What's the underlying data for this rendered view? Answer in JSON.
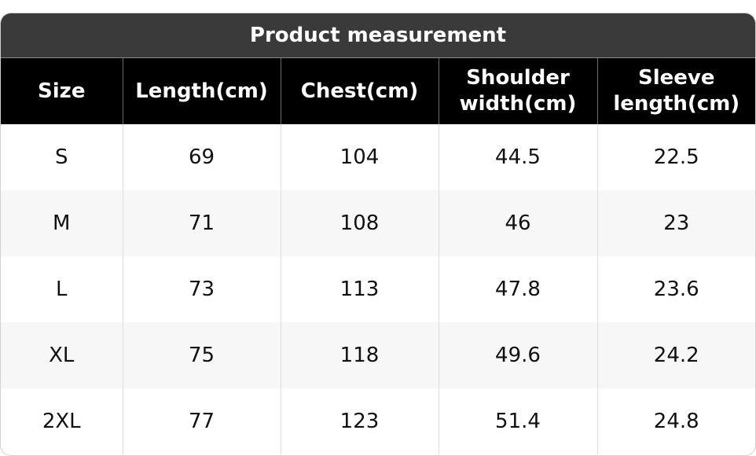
{
  "table": {
    "title": "Product measurement",
    "header": [
      "Size",
      "Length(cm)",
      "Chest(cm)",
      "Shoulder width(cm)",
      "Sleeve length(cm)"
    ],
    "rows": [
      [
        "S",
        69,
        104,
        44.5,
        22.5
      ],
      [
        "M",
        71,
        108,
        46,
        23
      ],
      [
        "L",
        73,
        113,
        47.8,
        23.6
      ],
      [
        "XL",
        75,
        118,
        49.6,
        24.2
      ],
      [
        "2XL",
        77,
        123,
        51.4,
        24.8
      ]
    ]
  }
}
